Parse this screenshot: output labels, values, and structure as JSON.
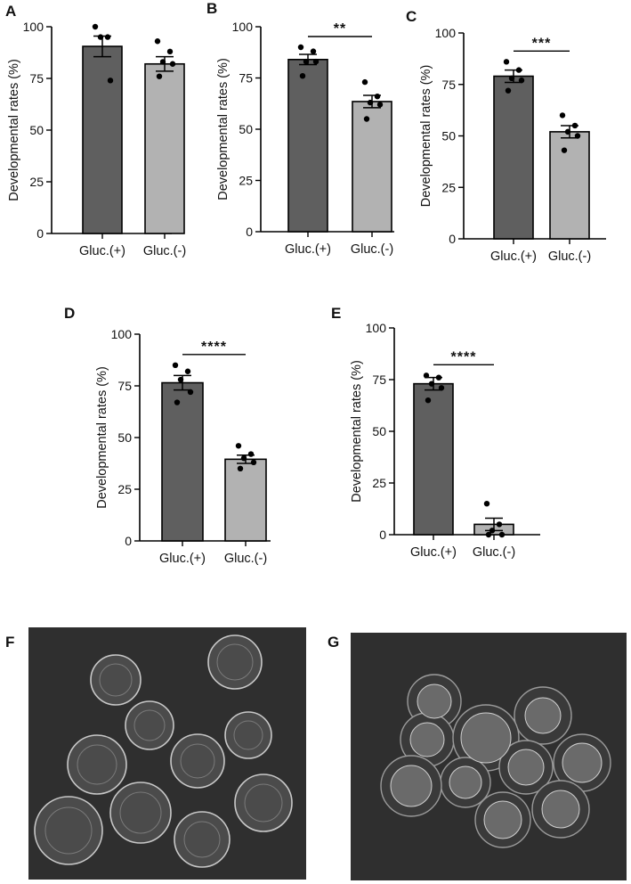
{
  "figure": {
    "colors": {
      "gluc_plus_bar": "#5f5f5f",
      "gluc_minus_bar": "#b2b2b2",
      "bar_outline": "#000000",
      "points": "#000000",
      "photo_background": "#2f2f2f"
    }
  },
  "chart_data": [
    {
      "panel": "A",
      "type": "bar",
      "categories": [
        "Gluc.(+)",
        "Gluc.(-)"
      ],
      "ylabel": "Developmental rates (%)",
      "ylim": [
        0,
        100
      ],
      "yticks": [
        "0",
        "25",
        "50",
        "75",
        "100"
      ],
      "values": [
        90.5,
        82
      ],
      "sem": [
        5,
        3.5
      ],
      "points": [
        [
          100,
          95,
          95,
          74
        ],
        [
          93,
          88,
          83,
          82,
          76
        ]
      ],
      "significance": ""
    },
    {
      "panel": "B",
      "type": "bar",
      "categories": [
        "Gluc.(+)",
        "Gluc.(-)"
      ],
      "ylabel": "Developmental rates (%)",
      "ylim": [
        0,
        100
      ],
      "yticks": [
        "0",
        "25",
        "50",
        "75",
        "100"
      ],
      "values": [
        84,
        63.5
      ],
      "sem": [
        2.5,
        3
      ],
      "points": [
        [
          90,
          88,
          83,
          83,
          76
        ],
        [
          73,
          66,
          63,
          62,
          55
        ]
      ],
      "significance": "**"
    },
    {
      "panel": "C",
      "type": "bar",
      "categories": [
        "Gluc.(+)",
        "Gluc.(-)"
      ],
      "ylabel": "Developmental rates (%)",
      "ylim": [
        0,
        100
      ],
      "yticks": [
        "0",
        "25",
        "50",
        "75",
        "100"
      ],
      "values": [
        79,
        52
      ],
      "sem": [
        3,
        3
      ],
      "points": [
        [
          86,
          82,
          78,
          77,
          72
        ],
        [
          60,
          55,
          52,
          50,
          43
        ]
      ],
      "significance": "***"
    },
    {
      "panel": "D",
      "type": "bar",
      "categories": [
        "Gluc.(+)",
        "Gluc.(-)"
      ],
      "ylabel": "Developmental rates (%)",
      "ylim": [
        0,
        100
      ],
      "yticks": [
        "0",
        "25",
        "50",
        "75",
        "100"
      ],
      "values": [
        76.5,
        39.5
      ],
      "sem": [
        3.5,
        2
      ],
      "points": [
        [
          85,
          82,
          78,
          72,
          67
        ],
        [
          46,
          42,
          40,
          38,
          35
        ]
      ],
      "significance": "****"
    },
    {
      "panel": "E",
      "type": "bar",
      "categories": [
        "Gluc.(+)",
        "Gluc.(-)"
      ],
      "ylabel": "Developmental rates (%)",
      "ylim": [
        0,
        100
      ],
      "yticks": [
        "0",
        "25",
        "50",
        "75",
        "100"
      ],
      "values": [
        73,
        5
      ],
      "sem": [
        3,
        3
      ],
      "points": [
        [
          77,
          76,
          73,
          71,
          65
        ],
        [
          15,
          5,
          2,
          0,
          0
        ]
      ],
      "significance": "****"
    }
  ],
  "photos": [
    {
      "panel": "F"
    },
    {
      "panel": "G"
    }
  ]
}
